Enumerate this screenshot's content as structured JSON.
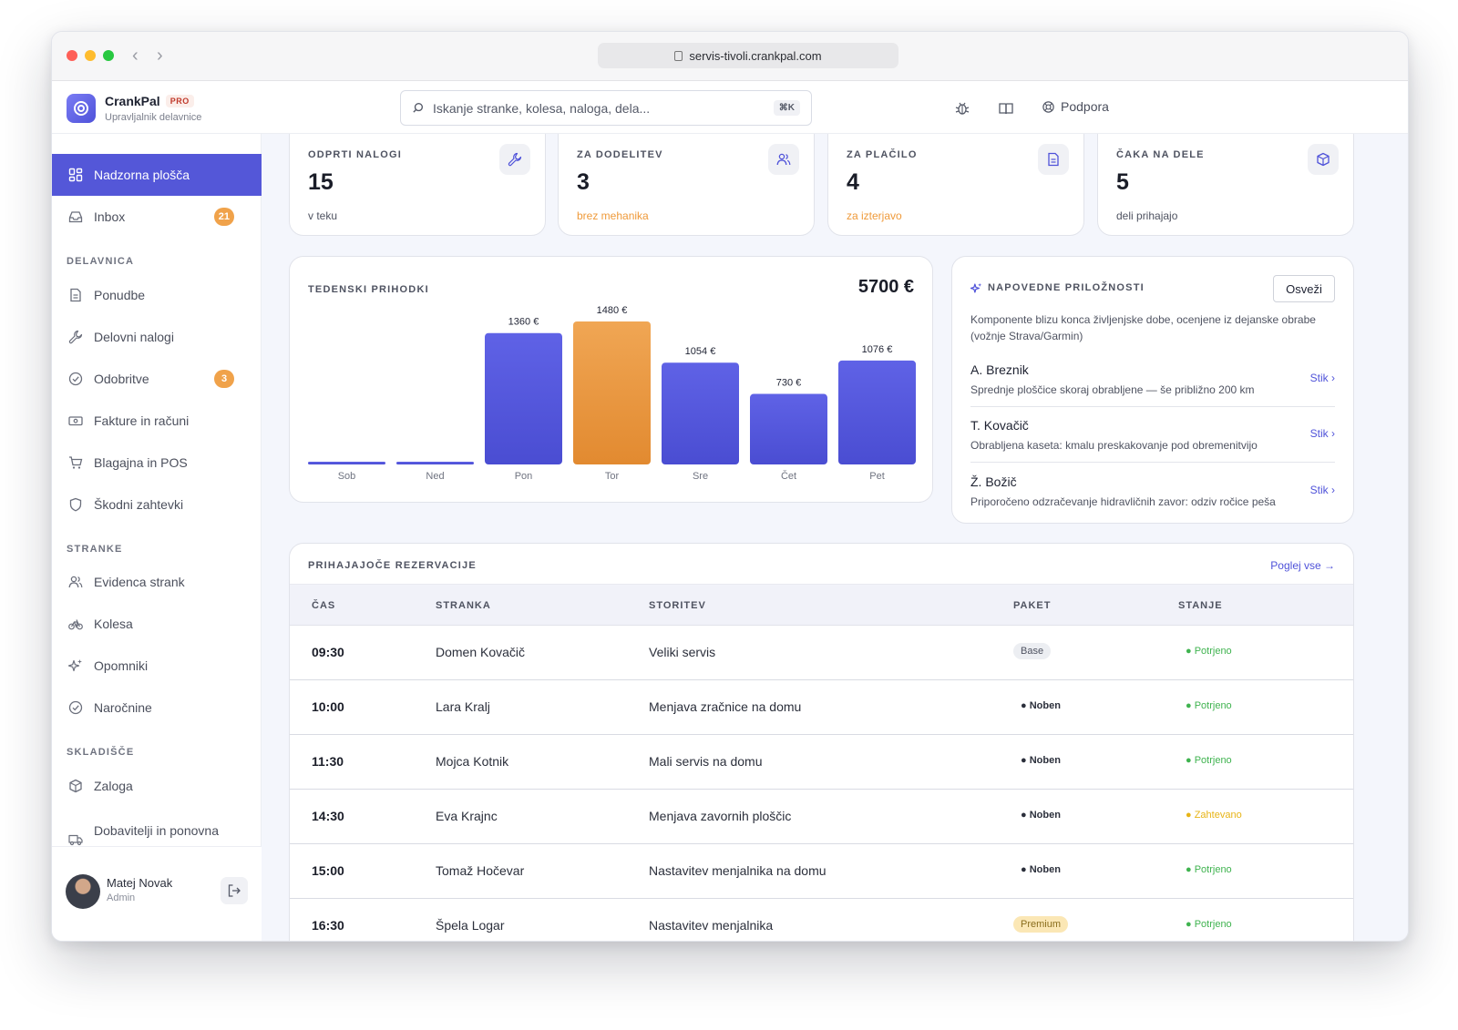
{
  "browser": {
    "url": "servis-tivoli.crankpal.com"
  },
  "app": {
    "name": "CrankPal",
    "plan_badge": "PRO",
    "subtitle": "Upravljalnik delavnice"
  },
  "header": {
    "search_placeholder": "Iskanje stranke, kolesa, naloga, dela...",
    "shortcut": "⌘K",
    "support_label": "Podpora"
  },
  "sidebar": {
    "items": [
      {
        "label": "Nadzorna plošča"
      },
      {
        "label": "Inbox",
        "badge": "21"
      }
    ],
    "sections": [
      {
        "title": "DELAVNICA",
        "items": [
          {
            "label": "Ponudbe"
          },
          {
            "label": "Delovni nalogi"
          },
          {
            "label": "Odobritve",
            "badge": "3"
          },
          {
            "label": "Fakture in računi"
          },
          {
            "label": "Blagajna in POS"
          },
          {
            "label": "Škodni zahtevki"
          }
        ]
      },
      {
        "title": "STRANKE",
        "items": [
          {
            "label": "Evidenca strank"
          },
          {
            "label": "Kolesa"
          },
          {
            "label": "Opomniki"
          },
          {
            "label": "Naročnine"
          }
        ]
      },
      {
        "title": "SKLADIŠČE",
        "items": [
          {
            "label": "Zaloga"
          },
          {
            "label": "Dobavitelji in ponovna"
          }
        ]
      }
    ],
    "user": {
      "name": "Matej Novak",
      "role": "Admin"
    }
  },
  "stats": [
    {
      "label": "ODPRTI NALOGI",
      "value": "15",
      "sub": "v teku",
      "icon": "wrench-icon"
    },
    {
      "label": "ZA DODELITEV",
      "value": "3",
      "sub": "brez mehanika",
      "icon": "users-icon"
    },
    {
      "label": "ZA PLAČILO",
      "value": "4",
      "sub": "za izterjavo",
      "icon": "document-icon"
    },
    {
      "label": "ČAKA NA DELE",
      "value": "5",
      "sub": "deli prihajajo",
      "icon": "box-icon"
    }
  ],
  "revenue": {
    "title": "TEDENSKI PRIHODKI",
    "total": "5700 €"
  },
  "chart_data": {
    "type": "bar",
    "title": "TEDENSKI PRIHODKI",
    "categories": [
      "Sob",
      "Ned",
      "Pon",
      "Tor",
      "Sre",
      "Čet",
      "Pet"
    ],
    "values": [
      0,
      0,
      1360,
      1480,
      1054,
      730,
      1076
    ],
    "value_labels": [
      "",
      "",
      "1360 €",
      "1480 €",
      "1054 €",
      "730 €",
      "1076 €"
    ],
    "highlight_index": 3,
    "colors": {
      "bar": "#5558dd",
      "highlight": "#eb9a42"
    },
    "ylim": [
      0,
      1480
    ]
  },
  "opportunities": {
    "title": "NAPOVEDNE PRILOŽNOSTI",
    "refresh_label": "Osveži",
    "description": "Komponente blizu konca življenjske dobe, ocenjene iz dejanske obrabe (vožnje Strava/Garmin)",
    "items": [
      {
        "name": "A. Breznik",
        "note": "Sprednje ploščice skoraj obrabljene — še približno 200 km",
        "action": "Stik ›"
      },
      {
        "name": "T. Kovačič",
        "note": "Obrabljena kaseta: kmalu preskakovanje pod obremenitvijo",
        "action": "Stik ›"
      },
      {
        "name": "Ž. Božič",
        "note": "Priporočeno odzračevanje hidravličnih zavor: odziv ročice peša",
        "action": "Stik ›"
      }
    ]
  },
  "bookings": {
    "title": "PRIHAJAJOČE REZERVACIJE",
    "view_all": "Poglej vse →",
    "columns": [
      "ČAS",
      "STRANKA",
      "STORITEV",
      "PAKET",
      "STANJE"
    ],
    "rows": [
      {
        "time": "09:30",
        "customer": "Domen Kovačič",
        "service": "Veliki servis",
        "package": "Base",
        "status": "Potrjeno"
      },
      {
        "time": "10:00",
        "customer": "Lara Kralj",
        "service": "Menjava zračnice na domu",
        "package": "Noben",
        "status": "Potrjeno"
      },
      {
        "time": "11:30",
        "customer": "Mojca Kotnik",
        "service": "Mali servis na domu",
        "package": "Noben",
        "status": "Potrjeno"
      },
      {
        "time": "14:30",
        "customer": "Eva Krajnc",
        "service": "Menjava zavornih ploščic",
        "package": "Noben",
        "status": "Zahtevano"
      },
      {
        "time": "15:00",
        "customer": "Tomaž Hočevar",
        "service": "Nastavitev menjalnika na domu",
        "package": "Noben",
        "status": "Potrjeno"
      },
      {
        "time": "16:30",
        "customer": "Špela Logar",
        "service": "Nastavitev menjalnika",
        "package": "Premium",
        "status": "Potrjeno"
      }
    ]
  },
  "colors": {
    "accent": "#5457d8",
    "warning": "#ef9a3a",
    "success": "#3fb34f",
    "pending": "#e7b416"
  }
}
